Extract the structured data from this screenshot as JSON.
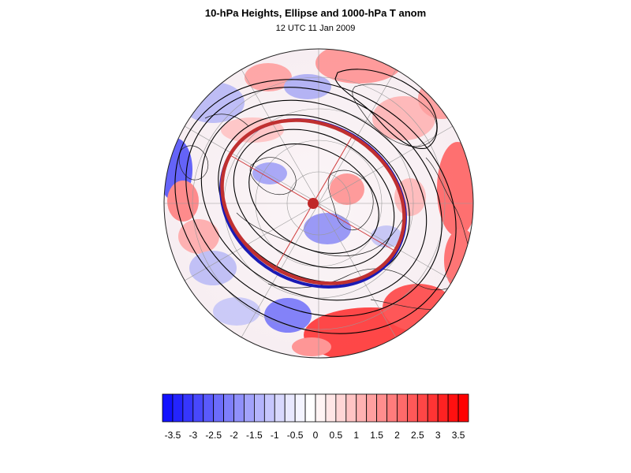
{
  "figure": {
    "title": "10-hPa Heights, Ellipse and 1000-hPa T anom",
    "subtitle": "12 UTC 11 Jan 2009"
  },
  "map": {
    "projection": "north-polar-stereographic",
    "field": "1000-hPa temperature anomaly",
    "contour_field": "10-hPa heights",
    "ellipse_colors": {
      "outer": "#c03030",
      "inner": "#1a1ab4"
    },
    "center_marker_color": "#c02828"
  },
  "colorbar": {
    "levels": [
      -3.75,
      -3.5,
      -3.25,
      -3,
      -2.75,
      -2.5,
      -2.25,
      -2,
      -1.75,
      -1.5,
      -1.25,
      -1,
      -0.75,
      -0.5,
      -0.25,
      0,
      0.25,
      0.5,
      0.75,
      1,
      1.25,
      1.5,
      1.75,
      2,
      2.25,
      2.5,
      2.75,
      3,
      3.25,
      3.5,
      3.75
    ],
    "colors": [
      "#1212ff",
      "#2424fe",
      "#3636fd",
      "#4848fc",
      "#5a5afc",
      "#6c6cfb",
      "#7e7efb",
      "#9090fb",
      "#a2a2fb",
      "#b4b4fc",
      "#c6c6fd",
      "#d8d8fd",
      "#e8e8fe",
      "#f4f4ff",
      "#ffffff",
      "#fff4f4",
      "#ffe6e6",
      "#ffd6d6",
      "#ffc4c4",
      "#ffb2b2",
      "#ffa0a0",
      "#ff8e8e",
      "#ff7c7c",
      "#ff6a6a",
      "#ff5858",
      "#ff4646",
      "#ff3434",
      "#ff2222",
      "#ff1010",
      "#ff0000"
    ],
    "tick_labels": [
      "-3.5",
      "-3",
      "-2.5",
      "-2",
      "-1.5",
      "-1",
      "-0.5",
      "0",
      "0.5",
      "1",
      "1.5",
      "2",
      "2.5",
      "3",
      "3.5"
    ]
  }
}
